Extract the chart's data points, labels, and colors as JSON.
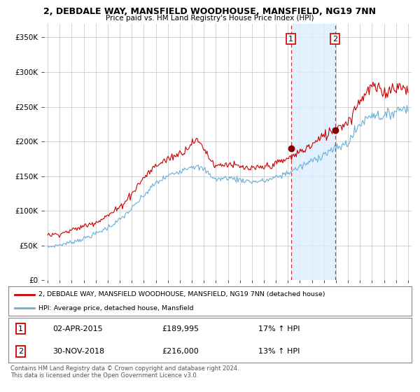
{
  "title": "2, DEBDALE WAY, MANSFIELD WOODHOUSE, MANSFIELD, NG19 7NN",
  "subtitle": "Price paid vs. HM Land Registry's House Price Index (HPI)",
  "legend_line1": "2, DEBDALE WAY, MANSFIELD WOODHOUSE, MANSFIELD, NG19 7NN (detached house)",
  "legend_line2": "HPI: Average price, detached house, Mansfield",
  "footer": "Contains HM Land Registry data © Crown copyright and database right 2024.\nThis data is licensed under the Open Government Licence v3.0.",
  "annotation1": {
    "label": "1",
    "date": "02-APR-2015",
    "price": "£189,995",
    "hpi": "17% ↑ HPI"
  },
  "annotation2": {
    "label": "2",
    "date": "30-NOV-2018",
    "price": "£216,000",
    "hpi": "13% ↑ HPI"
  },
  "sale1_x": 2015.25,
  "sale1_y": 189995,
  "sale2_x": 2018.92,
  "sale2_y": 216000,
  "hpi_line_color": "#6baed6",
  "price_color": "#cc0000",
  "shaded_color": "#ddeeff",
  "ylim_min": 0,
  "ylim_max": 370000,
  "yticks": [
    0,
    50000,
    100000,
    150000,
    200000,
    250000,
    300000,
    350000
  ],
  "ytick_labels": [
    "£0",
    "£50K",
    "£100K",
    "£150K",
    "£200K",
    "£250K",
    "£300K",
    "£350K"
  ],
  "xticks": [
    1995,
    1996,
    1997,
    1998,
    1999,
    2000,
    2001,
    2002,
    2003,
    2004,
    2005,
    2006,
    2007,
    2008,
    2009,
    2010,
    2011,
    2012,
    2013,
    2014,
    2015,
    2016,
    2017,
    2018,
    2019,
    2020,
    2021,
    2022,
    2023,
    2024,
    2025
  ],
  "background_color": "#ffffff",
  "plot_bg_color": "#ffffff",
  "grid_color": "#cccccc"
}
